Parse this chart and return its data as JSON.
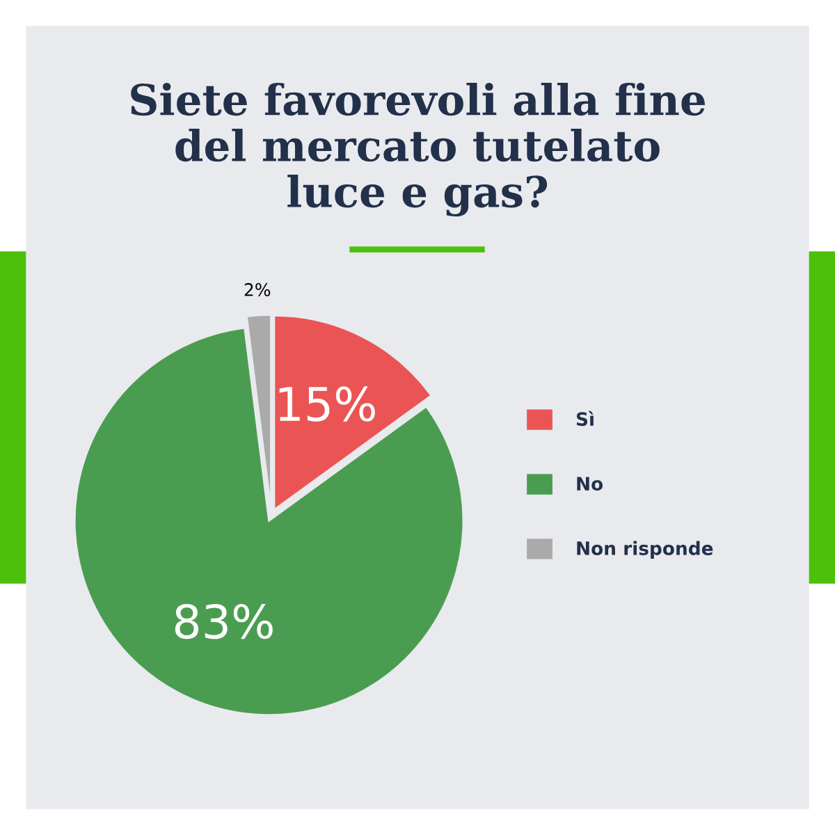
{
  "chart_data": {
    "type": "pie",
    "title": "Siete favorevoli alla fine\ndel mercato tutelato\nluce e gas?",
    "categories": [
      "Sì",
      "No",
      "Non risponde"
    ],
    "values": [
      15,
      83,
      2
    ],
    "colors": [
      "#eb5454",
      "#4a9d50",
      "#aaaaaa"
    ],
    "value_labels": [
      "15%",
      "83%",
      "2%"
    ],
    "legend": "right"
  }
}
